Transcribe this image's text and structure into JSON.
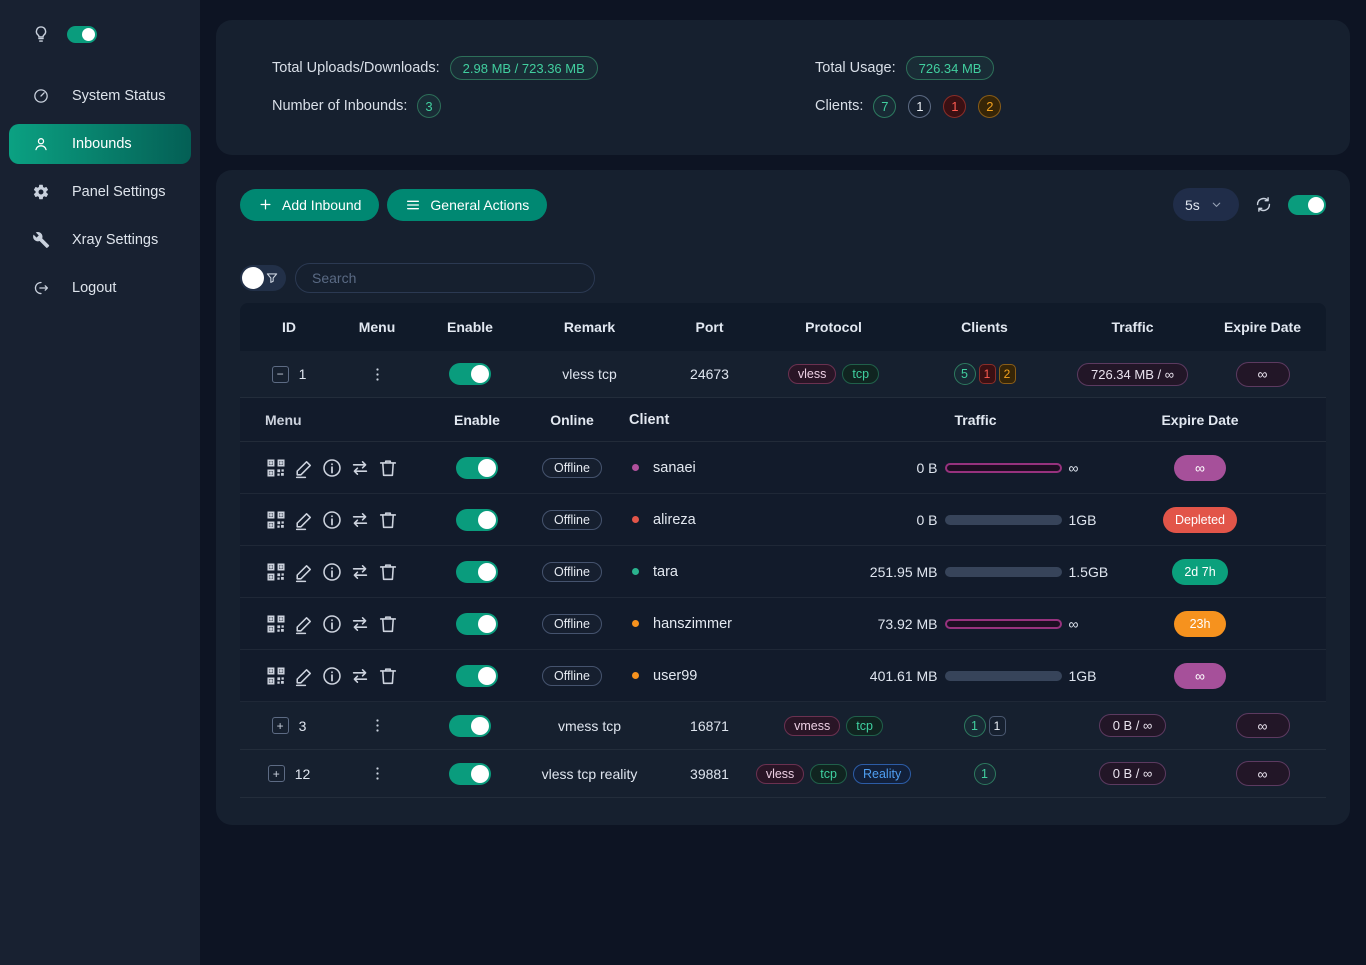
{
  "sidebar": {
    "theme_toggle_on": true,
    "items": [
      {
        "label": "System Status",
        "icon": "dashboard-icon"
      },
      {
        "label": "Inbounds",
        "icon": "user-icon"
      },
      {
        "label": "Panel Settings",
        "icon": "gear-icon"
      },
      {
        "label": "Xray Settings",
        "icon": "wrench-icon"
      },
      {
        "label": "Logout",
        "icon": "logout-icon"
      }
    ]
  },
  "stats": {
    "uploads_label": "Total Uploads/Downloads:",
    "uploads_value": "2.98 MB / 723.36 MB",
    "inbounds_label": "Number of Inbounds:",
    "inbounds_value": "3",
    "usage_label": "Total Usage:",
    "usage_value": "726.34 MB",
    "clients_label": "Clients:",
    "clients_counts": [
      {
        "value": "7",
        "color": "green"
      },
      {
        "value": "1",
        "color": "gray"
      },
      {
        "value": "1",
        "color": "red"
      },
      {
        "value": "2",
        "color": "orange"
      }
    ]
  },
  "toolbar": {
    "add_inbound": "Add Inbound",
    "general_actions": "General Actions",
    "refresh_interval": "5s",
    "auto_refresh_on": true
  },
  "search": {
    "placeholder": "Search"
  },
  "table": {
    "headers": {
      "id": "ID",
      "menu": "Menu",
      "enable": "Enable",
      "remark": "Remark",
      "port": "Port",
      "protocol": "Protocol",
      "clients": "Clients",
      "traffic": "Traffic",
      "expire": "Expire Date"
    }
  },
  "inbounds": [
    {
      "id": "1",
      "expanded": true,
      "enabled": true,
      "remark": "vless tcp",
      "port": "24673",
      "protocols": [
        "vless",
        "tcp"
      ],
      "client_counts": [
        "5",
        "1",
        "2"
      ],
      "traffic": "726.34 MB / ∞",
      "expire": "∞"
    },
    {
      "id": "3",
      "expanded": false,
      "enabled": true,
      "remark": "vmess tcp",
      "port": "16871",
      "protocols": [
        "vmess",
        "tcp"
      ],
      "client_counts": [
        "1",
        "1"
      ],
      "traffic": "0 B / ∞",
      "expire": "∞"
    },
    {
      "id": "12",
      "expanded": false,
      "enabled": true,
      "remark": "vless tcp reality",
      "port": "39881",
      "protocols": [
        "vless",
        "tcp",
        "Reality"
      ],
      "client_counts": [
        "1"
      ],
      "traffic": "0 B / ∞",
      "expire": "∞"
    }
  ],
  "subtable": {
    "headers": {
      "menu": "Menu",
      "enable": "Enable",
      "online": "Online",
      "client": "Client",
      "traffic": "Traffic",
      "expire": "Expire Date"
    },
    "menu_icons": [
      "qr-code-icon",
      "edit-icon",
      "info-icon",
      "reset-traffic-icon",
      "delete-icon"
    ],
    "clients": [
      {
        "name": "sanaei",
        "online": "Offline",
        "enabled": true,
        "status_color": "magenta",
        "used": "0 B",
        "limit": "∞",
        "unlimited": true,
        "percent": 100,
        "expire": "∞",
        "expire_color": "magenta"
      },
      {
        "name": "alireza",
        "online": "Offline",
        "enabled": true,
        "status_color": "red",
        "used": "0 B",
        "limit": "1GB",
        "unlimited": false,
        "percent": 0,
        "expire": "Depleted",
        "expire_color": "red"
      },
      {
        "name": "tara",
        "online": "Offline",
        "enabled": true,
        "status_color": "green",
        "used": "251.95 MB",
        "limit": "1.5GB",
        "unlimited": false,
        "percent": 17,
        "expire": "2d 7h",
        "expire_color": "green"
      },
      {
        "name": "hanszimmer",
        "online": "Offline",
        "enabled": true,
        "status_color": "orange",
        "used": "73.92 MB",
        "limit": "∞",
        "unlimited": true,
        "percent": 100,
        "expire": "23h",
        "expire_color": "orange"
      },
      {
        "name": "user99",
        "online": "Offline",
        "enabled": true,
        "status_color": "orange",
        "used": "401.61 MB",
        "limit": "1GB",
        "unlimited": false,
        "percent": 40,
        "expire": "∞",
        "expire_color": "magenta"
      }
    ]
  },
  "colors": {
    "accent_green": "#0a9c7d",
    "button_teal": "#008872",
    "magenta": "#a6509a",
    "red": "#e25549",
    "orange": "#f6921e",
    "teal_text": "#41cf9f",
    "reality_blue": "#4f9ef0"
  }
}
